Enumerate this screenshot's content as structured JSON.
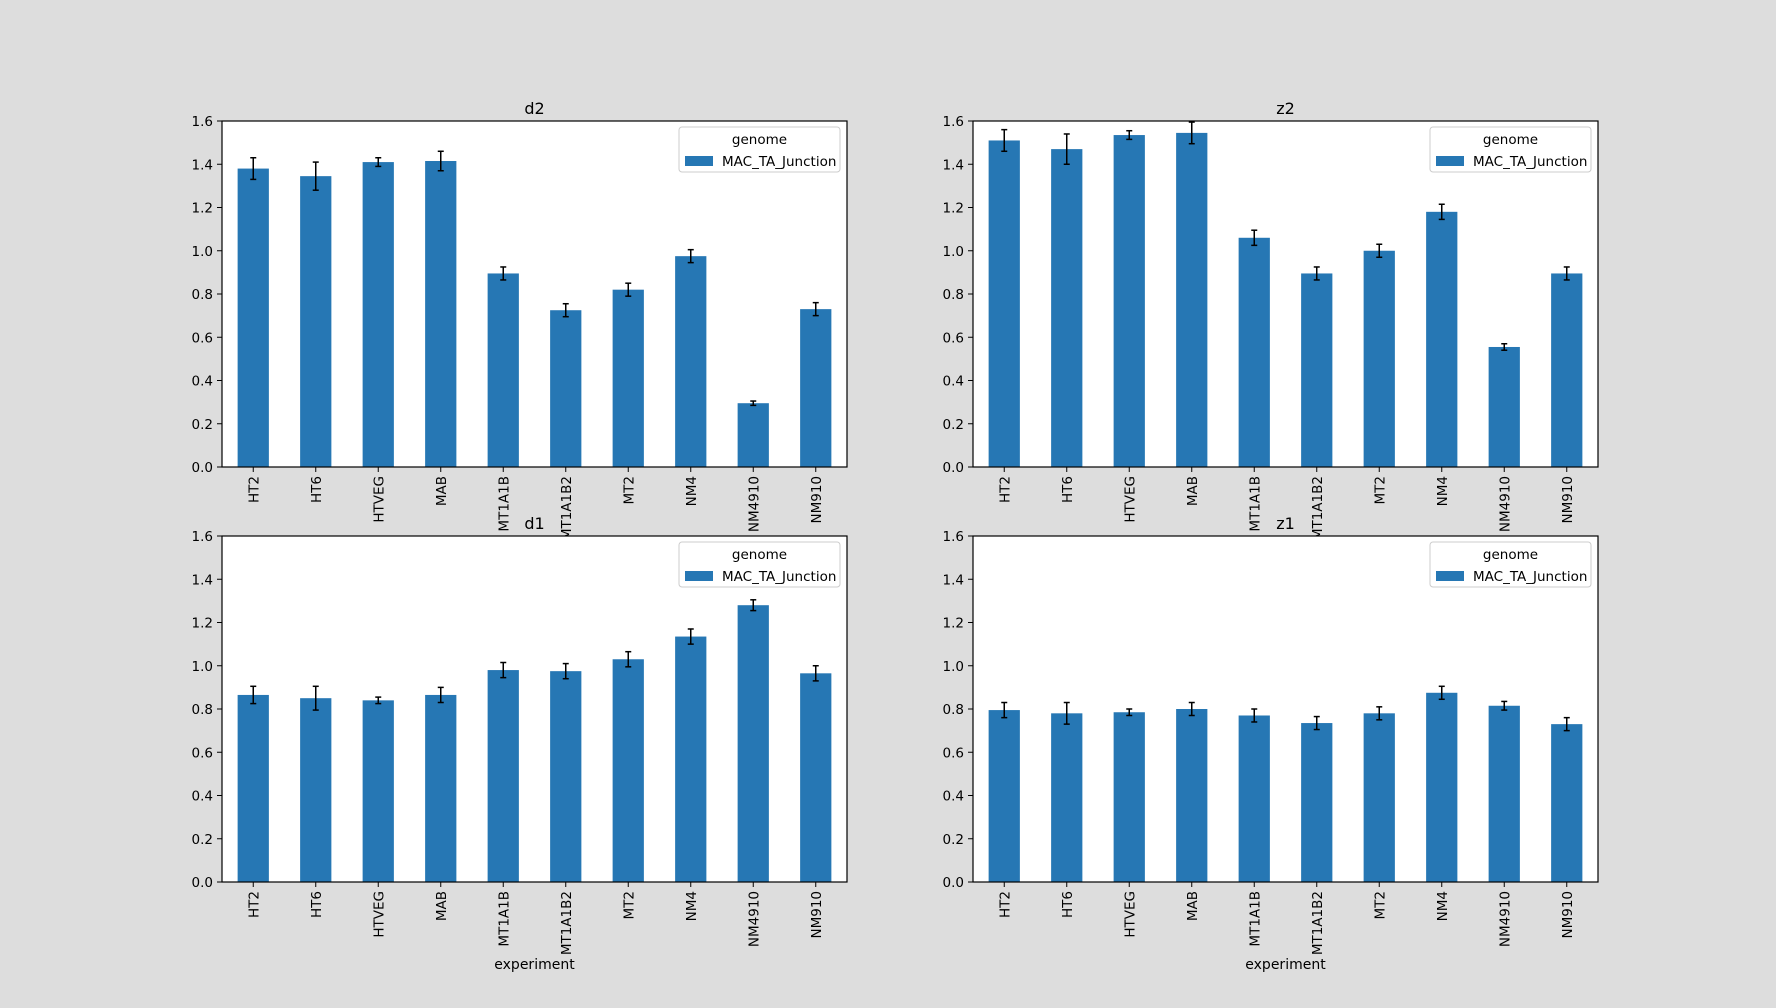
{
  "chart_data": [
    {
      "type": "bar",
      "title": "d2",
      "xlabel": "",
      "ylabel": "",
      "ylim": [
        0,
        1.6
      ],
      "yticks": [
        "0.0",
        "0.2",
        "0.4",
        "0.6",
        "0.8",
        "1.0",
        "1.2",
        "1.4",
        "1.6"
      ],
      "categories": [
        "HT2",
        "HT6",
        "HTVEG",
        "MAB",
        "MT1A1B",
        "MT1A1B2",
        "MT2",
        "NM4",
        "NM4910",
        "NM910"
      ],
      "legend": {
        "title": "genome",
        "position": "upper right"
      },
      "series": [
        {
          "name": "MAC_TA_Junction",
          "values": [
            1.38,
            1.345,
            1.41,
            1.415,
            0.895,
            0.725,
            0.82,
            0.975,
            0.295,
            0.73
          ],
          "errors": [
            0.05,
            0.065,
            0.02,
            0.045,
            0.03,
            0.03,
            0.03,
            0.03,
            0.01,
            0.03
          ]
        }
      ]
    },
    {
      "type": "bar",
      "title": "z2",
      "xlabel": "",
      "ylabel": "",
      "ylim": [
        0,
        1.6
      ],
      "yticks": [
        "0.0",
        "0.2",
        "0.4",
        "0.6",
        "0.8",
        "1.0",
        "1.2",
        "1.4",
        "1.6"
      ],
      "categories": [
        "HT2",
        "HT6",
        "HTVEG",
        "MAB",
        "MT1A1B",
        "MT1A1B2",
        "MT2",
        "NM4",
        "NM4910",
        "NM910"
      ],
      "legend": {
        "title": "genome",
        "position": "upper right"
      },
      "series": [
        {
          "name": "MAC_TA_Junction",
          "values": [
            1.51,
            1.47,
            1.535,
            1.545,
            1.06,
            0.895,
            1.0,
            1.18,
            0.555,
            0.895
          ],
          "errors": [
            0.05,
            0.07,
            0.02,
            0.05,
            0.035,
            0.03,
            0.03,
            0.035,
            0.015,
            0.03
          ]
        }
      ]
    },
    {
      "type": "bar",
      "title": "d1",
      "xlabel": "experiment",
      "ylabel": "",
      "ylim": [
        0,
        1.6
      ],
      "yticks": [
        "0.0",
        "0.2",
        "0.4",
        "0.6",
        "0.8",
        "1.0",
        "1.2",
        "1.4",
        "1.6"
      ],
      "categories": [
        "HT2",
        "HT6",
        "HTVEG",
        "MAB",
        "MT1A1B",
        "MT1A1B2",
        "MT2",
        "NM4",
        "NM4910",
        "NM910"
      ],
      "legend": {
        "title": "genome",
        "position": "upper right"
      },
      "series": [
        {
          "name": "MAC_TA_Junction",
          "values": [
            0.865,
            0.85,
            0.84,
            0.865,
            0.98,
            0.975,
            1.03,
            1.135,
            1.28,
            0.965
          ],
          "errors": [
            0.04,
            0.055,
            0.015,
            0.035,
            0.035,
            0.035,
            0.035,
            0.035,
            0.025,
            0.035
          ]
        }
      ]
    },
    {
      "type": "bar",
      "title": "z1",
      "xlabel": "experiment",
      "ylabel": "",
      "ylim": [
        0,
        1.6
      ],
      "yticks": [
        "0.0",
        "0.2",
        "0.4",
        "0.6",
        "0.8",
        "1.0",
        "1.2",
        "1.4",
        "1.6"
      ],
      "categories": [
        "HT2",
        "HT6",
        "HTVEG",
        "MAB",
        "MT1A1B",
        "MT1A1B2",
        "MT2",
        "NM4",
        "NM4910",
        "NM910"
      ],
      "legend": {
        "title": "genome",
        "position": "upper right"
      },
      "series": [
        {
          "name": "MAC_TA_Junction",
          "values": [
            0.795,
            0.78,
            0.785,
            0.8,
            0.77,
            0.735,
            0.78,
            0.875,
            0.815,
            0.73
          ],
          "errors": [
            0.035,
            0.05,
            0.015,
            0.03,
            0.03,
            0.03,
            0.03,
            0.03,
            0.02,
            0.03
          ]
        }
      ]
    }
  ],
  "style": {
    "bar_color": "#2677b4",
    "error_color": "#000000",
    "figure_bg": "#dddddd",
    "axes_bg": "#ffffff"
  }
}
